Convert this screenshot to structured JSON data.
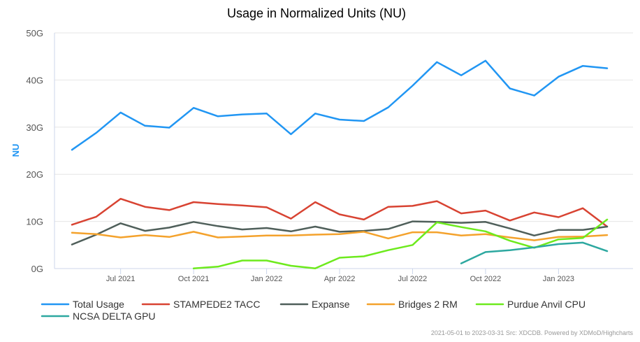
{
  "chart_data": {
    "type": "line",
    "title": "Usage in Normalized Units (NU)",
    "ylabel": "NU",
    "xlabel": "",
    "ylim": [
      0,
      50
    ],
    "y_ticks": [
      0,
      10,
      20,
      30,
      40,
      50
    ],
    "y_tick_labels": [
      "0G",
      "10G",
      "20G",
      "30G",
      "40G",
      "50G"
    ],
    "y_unit": "G",
    "categories": [
      "2021-05",
      "2021-06",
      "2021-07",
      "2021-08",
      "2021-09",
      "2021-10",
      "2021-11",
      "2021-12",
      "2022-01",
      "2022-02",
      "2022-03",
      "2022-04",
      "2022-05",
      "2022-06",
      "2022-07",
      "2022-08",
      "2022-09",
      "2022-10",
      "2022-11",
      "2022-12",
      "2023-01",
      "2023-02",
      "2023-03"
    ],
    "x_tick_labels": [
      {
        "index": 2,
        "label": "Jul 2021"
      },
      {
        "index": 5,
        "label": "Oct 2021"
      },
      {
        "index": 8,
        "label": "Jan 2022"
      },
      {
        "index": 11,
        "label": "Apr 2022"
      },
      {
        "index": 14,
        "label": "Jul 2022"
      },
      {
        "index": 17,
        "label": "Oct 2022"
      },
      {
        "index": 20,
        "label": "Jan 2023"
      }
    ],
    "grid": "horizontal",
    "legend_position": "bottom",
    "series": [
      {
        "name": "Total Usage",
        "color": "#2196f3",
        "values": [
          25.2,
          28.8,
          33.1,
          30.3,
          29.9,
          34.1,
          32.3,
          32.7,
          32.9,
          28.5,
          32.9,
          31.6,
          31.3,
          34.2,
          38.8,
          43.8,
          41.0,
          44.1,
          38.2,
          36.7,
          40.7,
          43.0,
          42.5
        ]
      },
      {
        "name": "STAMPEDE2 TACC",
        "color": "#d84332",
        "values": [
          9.3,
          11.0,
          14.8,
          13.1,
          12.4,
          14.1,
          13.7,
          13.4,
          13.0,
          10.6,
          14.1,
          11.5,
          10.4,
          13.1,
          13.3,
          14.3,
          11.7,
          12.3,
          10.2,
          11.9,
          10.9,
          12.8,
          8.9
        ]
      },
      {
        "name": "Expanse",
        "color": "#4f5f5a",
        "values": [
          5.1,
          7.2,
          9.6,
          8.0,
          8.7,
          9.9,
          9.0,
          8.3,
          8.6,
          7.9,
          8.9,
          7.8,
          8.0,
          8.4,
          10.0,
          9.9,
          9.7,
          9.9,
          8.5,
          7.0,
          8.2,
          8.2,
          8.9
        ]
      },
      {
        "name": "Bridges 2 RM",
        "color": "#f4a22c",
        "values": [
          7.6,
          7.3,
          6.6,
          7.1,
          6.7,
          7.8,
          6.6,
          6.8,
          7.0,
          7.0,
          7.2,
          7.3,
          7.8,
          6.4,
          7.7,
          7.7,
          7.0,
          7.3,
          6.6,
          6.0,
          6.7,
          6.8,
          7.1
        ]
      },
      {
        "name": "Purdue Anvil CPU",
        "color": "#6dea1d",
        "values": [
          null,
          null,
          null,
          null,
          null,
          0.05,
          0.4,
          1.7,
          1.7,
          0.6,
          0.05,
          2.3,
          2.6,
          3.9,
          5.0,
          9.8,
          8.8,
          7.9,
          5.9,
          4.4,
          6.2,
          6.5,
          10.4
        ]
      },
      {
        "name": "NCSA DELTA GPU",
        "color": "#2da8a0",
        "values": [
          null,
          null,
          null,
          null,
          null,
          null,
          null,
          null,
          null,
          null,
          null,
          null,
          null,
          null,
          null,
          null,
          1.1,
          3.5,
          3.9,
          4.5,
          5.2,
          5.5,
          3.7
        ]
      }
    ]
  },
  "credits": "2021-05-01 to 2023-03-31 Src: XDCDB. Powered by XDMoD/Highcharts",
  "colors": {
    "axis_line": "#ccd6eb",
    "grid_line": "#e6e6e6",
    "title_text": "#000000",
    "tick_text": "#555555",
    "ylabel_text": "#2196f3",
    "legend_text": "#333333",
    "credits_text": "#999999"
  }
}
